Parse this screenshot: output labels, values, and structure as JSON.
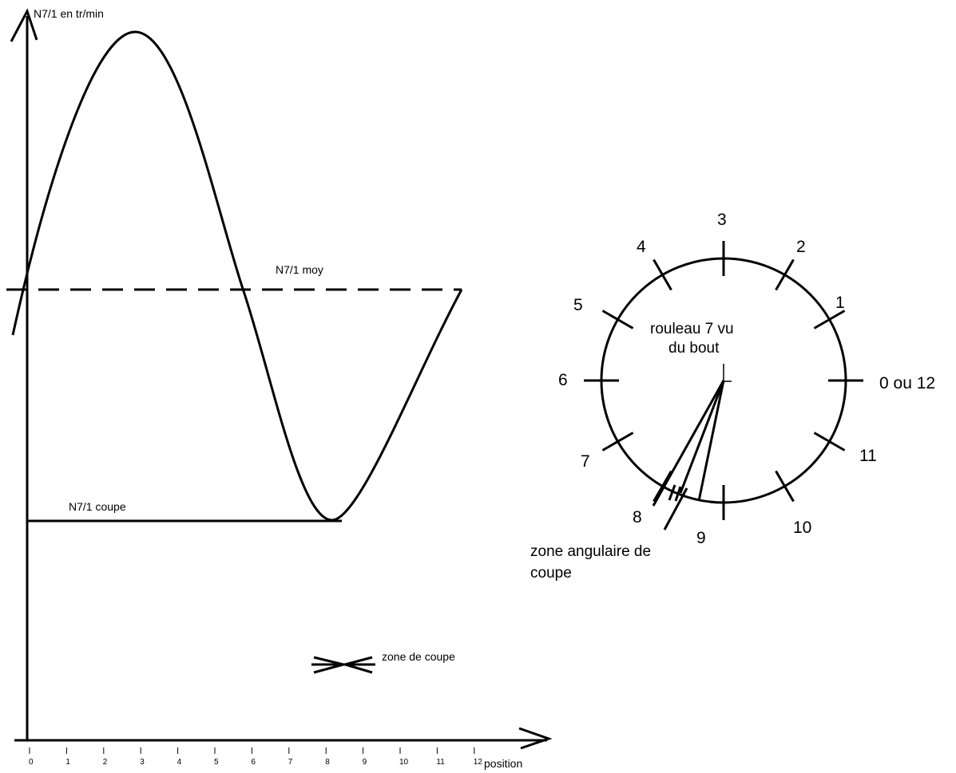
{
  "graph": {
    "y_axis_label": "N7/1 en tr/min",
    "x_axis_label": "position",
    "x_ticks": [
      "0",
      "1",
      "2",
      "3",
      "4",
      "5",
      "6",
      "7",
      "8",
      "9",
      "10",
      "11",
      "12"
    ],
    "mean_label": "N7/1 moy",
    "cut_speed_label": "N7/1 coupe",
    "cut_zone_label": "zone de coupe"
  },
  "dial": {
    "title_line1": "rouleau 7 vu",
    "title_line2": "du bout",
    "positions": [
      "0 ou 12",
      "1",
      "2",
      "3",
      "4",
      "5",
      "6",
      "7",
      "8",
      "9",
      "10",
      "11"
    ],
    "cut_zone_line1": "zone angulaire de",
    "cut_zone_line2": "coupe"
  }
}
